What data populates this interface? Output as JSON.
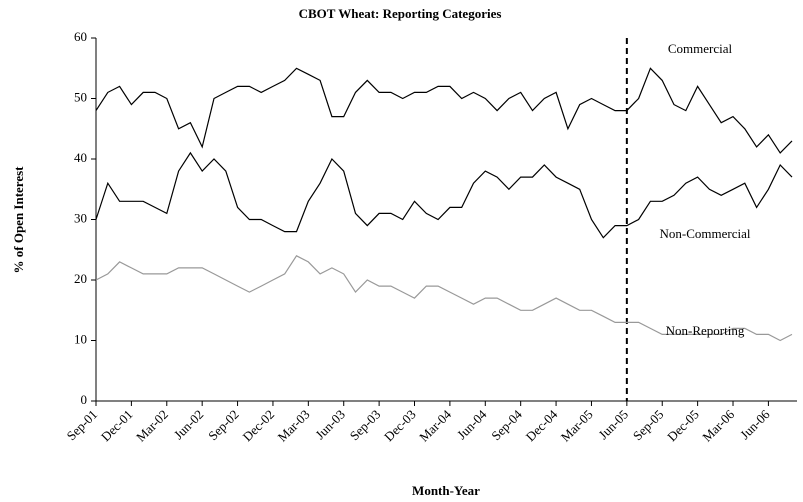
{
  "chart_data": {
    "type": "line",
    "title": "CBOT Wheat: Reporting Categories",
    "x_label": "Month-Year",
    "y_label": "% of Open Interest",
    "categories": [
      "Sep-01",
      null,
      null,
      "Dec-01",
      null,
      null,
      "Mar-02",
      null,
      null,
      "Jun-02",
      null,
      null,
      "Sep-02",
      null,
      null,
      "Dec-02",
      null,
      null,
      "Mar-03",
      null,
      null,
      "Jun-03",
      null,
      null,
      "Sep-03",
      null,
      null,
      "Dec-03",
      null,
      null,
      "Mar-04",
      null,
      null,
      "Jun-04",
      null,
      null,
      "Sep-04",
      null,
      null,
      "Dec-04",
      null,
      null,
      "Mar-05",
      null,
      null,
      "Jun-05",
      null,
      null,
      "Sep-05",
      null,
      null,
      "Dec-05",
      null,
      null,
      "Mar-06",
      null,
      null,
      "Jun-06",
      null,
      null
    ],
    "series": [
      {
        "name": "Commercial",
        "color": "#000000",
        "values": [
          48,
          51,
          52,
          49,
          51,
          51,
          50,
          45,
          46,
          42,
          50,
          51,
          52,
          52,
          51,
          52,
          53,
          55,
          54,
          53,
          47,
          47,
          51,
          53,
          51,
          51,
          50,
          51,
          51,
          52,
          52,
          50,
          51,
          50,
          48,
          50,
          51,
          48,
          50,
          51,
          45,
          49,
          50,
          49,
          48,
          48,
          50,
          55,
          53,
          49,
          48,
          52,
          49,
          46,
          47,
          45,
          42,
          44,
          41,
          43
        ]
      },
      {
        "name": "Non-Commercial",
        "color": "#000000",
        "values": [
          30,
          36,
          33,
          33,
          33,
          32,
          31,
          38,
          41,
          38,
          40,
          38,
          32,
          30,
          30,
          29,
          28,
          28,
          33,
          36,
          40,
          38,
          31,
          29,
          31,
          31,
          30,
          33,
          31,
          30,
          32,
          32,
          36,
          38,
          37,
          35,
          37,
          37,
          39,
          37,
          36,
          35,
          30,
          27,
          29,
          29,
          30,
          33,
          33,
          34,
          36,
          37,
          35,
          34,
          35,
          36,
          32,
          35,
          39,
          37
        ]
      },
      {
        "name": "Non-Reporting",
        "color": "#999999",
        "values": [
          20,
          21,
          23,
          22,
          21,
          21,
          21,
          22,
          22,
          22,
          21,
          20,
          19,
          18,
          19,
          20,
          21,
          24,
          23,
          21,
          22,
          21,
          18,
          20,
          19,
          19,
          18,
          17,
          19,
          19,
          18,
          17,
          16,
          17,
          17,
          16,
          15,
          15,
          16,
          17,
          16,
          15,
          15,
          14,
          13,
          13,
          13,
          12,
          11,
          11,
          11,
          11,
          11,
          11,
          12,
          12,
          11,
          11,
          10,
          11
        ]
      }
    ],
    "vline": "Jun-05",
    "ylim": [
      0,
      60
    ],
    "yticks": [
      0,
      10,
      20,
      30,
      40,
      50,
      60
    ]
  }
}
